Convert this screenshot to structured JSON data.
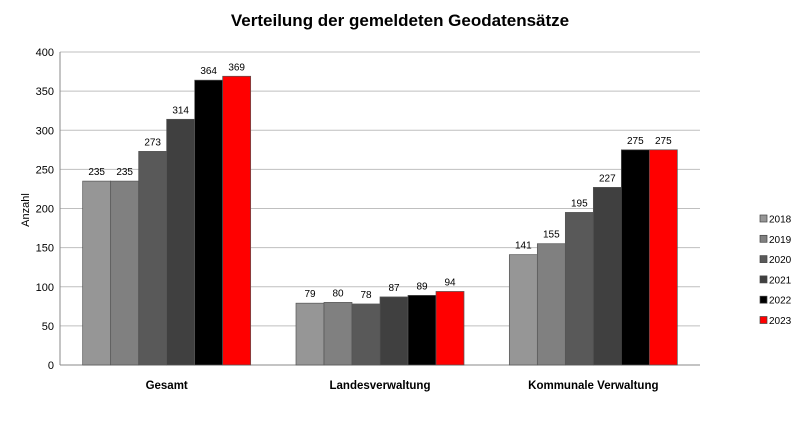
{
  "chart_data": {
    "type": "bar",
    "title": "Verteilung der gemeldeten Geodatensätze",
    "xlabel": "",
    "ylabel": "Anzahl",
    "ylim": [
      0,
      400
    ],
    "yticks": [
      0,
      50,
      100,
      150,
      200,
      250,
      300,
      350,
      400
    ],
    "grid": true,
    "legend_position": "right",
    "categories": [
      "Gesamt",
      "Landesverwaltung",
      "Kommunale Verwaltung"
    ],
    "series": [
      {
        "name": "2018",
        "color": "#969696",
        "values": [
          235,
          79,
          141
        ]
      },
      {
        "name": "2019",
        "color": "#808080",
        "values": [
          235,
          80,
          155
        ]
      },
      {
        "name": "2020",
        "color": "#595959",
        "values": [
          273,
          78,
          195
        ]
      },
      {
        "name": "2021",
        "color": "#404040",
        "values": [
          314,
          87,
          227
        ]
      },
      {
        "name": "2022",
        "color": "#000000",
        "values": [
          364,
          89,
          275
        ]
      },
      {
        "name": "2023",
        "color": "#FF0000",
        "values": [
          369,
          94,
          275
        ]
      }
    ]
  }
}
